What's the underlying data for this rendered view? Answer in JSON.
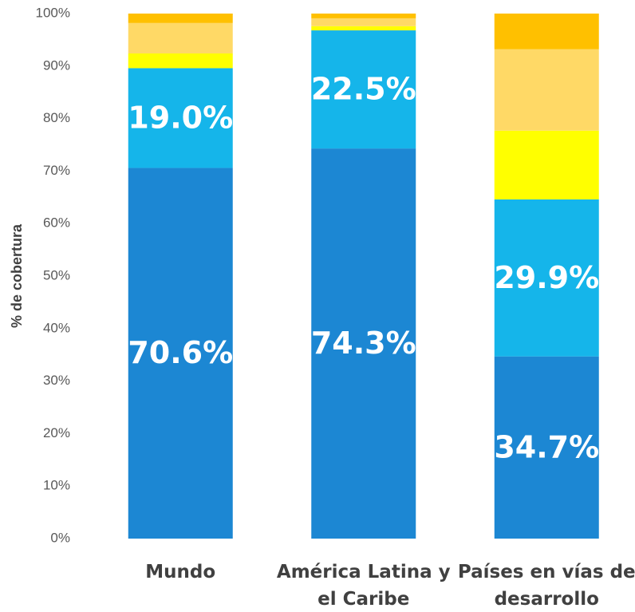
{
  "chart_data": {
    "type": "stacked_bar",
    "y_label": "% de cobertura",
    "categories": [
      "Mundo",
      "América Latina y el Caribe",
      "Países en vías de desarrollo"
    ],
    "series": [
      {
        "color": "#1c87d3",
        "values": [
          70.6,
          74.3,
          34.7
        ],
        "value_labels": [
          "70.6%",
          "74.3%",
          "34.7%"
        ]
      },
      {
        "color": "#15b5ea",
        "values": [
          19.0,
          22.5,
          29.9
        ],
        "value_labels": [
          "19.0%",
          "22.5%",
          "29.9%"
        ]
      },
      {
        "color": "#ffff00",
        "values": [
          2.8,
          0.8,
          13.1
        ]
      },
      {
        "color": "#ffd966",
        "values": [
          5.8,
          1.5,
          15.5
        ]
      },
      {
        "color": "#ffc000",
        "values": [
          1.8,
          0.9,
          6.8
        ]
      }
    ],
    "ylim": [
      0,
      100
    ],
    "yticks": [
      {
        "value": 0,
        "label": "0%"
      },
      {
        "value": 10,
        "label": "10%"
      },
      {
        "value": 20,
        "label": "20%"
      },
      {
        "value": 30,
        "label": "30%"
      },
      {
        "value": 40,
        "label": "40%"
      },
      {
        "value": 50,
        "label": "50%"
      },
      {
        "value": 60,
        "label": "60%"
      },
      {
        "value": 70,
        "label": "70%"
      },
      {
        "value": 80,
        "label": "80%"
      },
      {
        "value": 90,
        "label": "90%"
      },
      {
        "value": 100,
        "label": "100%"
      }
    ],
    "grid": false
  }
}
